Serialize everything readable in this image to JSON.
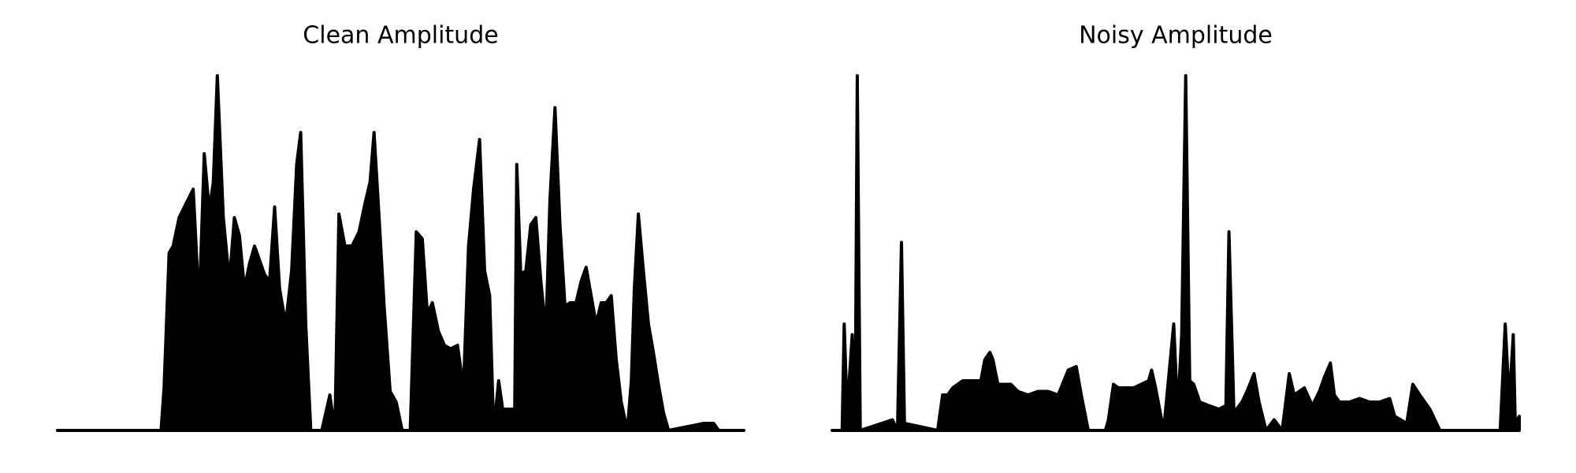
{
  "chart_data": [
    {
      "type": "area",
      "title": "Clean Amplitude",
      "color": "#000000",
      "x": [
        0,
        103,
        106,
        111,
        115,
        121,
        128,
        135,
        141,
        146,
        151,
        155,
        159,
        165,
        171,
        176,
        181,
        186,
        191,
        196,
        201,
        206,
        211,
        216,
        221,
        227,
        233,
        238,
        242,
        247,
        252,
        263,
        271,
        276,
        280,
        286,
        293,
        300,
        306,
        311,
        315,
        320,
        325,
        331,
        337,
        343,
        351,
        357,
        363,
        368,
        373,
        379,
        385,
        391,
        398,
        404,
        409,
        414,
        420,
        425,
        430,
        434,
        439,
        443,
        449,
        455,
        457,
        461,
        466,
        471,
        476,
        481,
        486,
        490,
        495,
        500,
        505,
        510,
        516,
        521,
        526,
        531,
        536,
        541,
        546,
        551,
        556,
        561,
        567,
        571,
        574,
        578,
        583,
        588,
        593,
        598,
        603,
        608,
        643,
        653,
        658,
        683
      ],
      "values": [
        0,
        0,
        0.12,
        0.5,
        0.52,
        0.6,
        0.64,
        0.68,
        0.35,
        0.78,
        0.62,
        0.7,
        1.0,
        0.6,
        0.42,
        0.6,
        0.55,
        0.4,
        0.47,
        0.52,
        0.48,
        0.44,
        0.42,
        0.63,
        0.4,
        0.3,
        0.45,
        0.75,
        0.84,
        0.3,
        0,
        0,
        0.1,
        0,
        0.61,
        0.52,
        0.52,
        0.56,
        0.64,
        0.7,
        0.84,
        0.6,
        0.35,
        0.11,
        0.08,
        0,
        0,
        0.56,
        0.54,
        0.33,
        0.36,
        0.28,
        0.24,
        0.23,
        0.24,
        0.12,
        0.52,
        0.68,
        0.82,
        0.45,
        0.38,
        0,
        0.14,
        0.06,
        0.06,
        0.06,
        0.75,
        0.44,
        0.45,
        0.58,
        0.6,
        0.42,
        0.28,
        0.65,
        0.91,
        0.58,
        0.35,
        0.36,
        0.36,
        0.42,
        0.46,
        0.38,
        0.3,
        0.36,
        0.36,
        0.38,
        0.2,
        0.08,
        0,
        0.14,
        0.4,
        0.61,
        0.45,
        0.3,
        0.22,
        0.13,
        0.05,
        0,
        0.02,
        0.02,
        0,
        0
      ]
    },
    {
      "type": "area",
      "title": "Noisy Amplitude",
      "color": "#000000",
      "x": [
        0,
        10,
        12,
        15,
        20,
        23,
        25,
        28,
        60,
        65,
        69,
        72,
        105,
        110,
        115,
        120,
        130,
        140,
        148,
        152,
        157,
        160,
        165,
        173,
        178,
        185,
        195,
        205,
        215,
        225,
        235,
        243,
        248,
        255,
        272,
        275,
        280,
        285,
        300,
        315,
        318,
        322,
        330,
        340,
        344,
        348,
        352,
        356,
        360,
        366,
        375,
        385,
        392,
        395,
        400,
        408,
        413,
        420,
        425,
        432,
        440,
        448,
        455,
        460,
        465,
        470,
        478,
        485,
        490,
        496,
        500,
        505,
        515,
        525,
        535,
        545,
        555,
        560,
        572,
        578,
        585,
        595,
        605,
        650,
        665,
        670,
        674,
        678,
        680,
        684
      ],
      "values": [
        0,
        0,
        0.3,
        0.05,
        0.27,
        0.05,
        1.0,
        0,
        0.03,
        0,
        0.53,
        0.02,
        0,
        0.1,
        0.1,
        0.12,
        0.14,
        0.14,
        0.14,
        0.2,
        0.22,
        0.2,
        0.13,
        0.13,
        0.13,
        0.11,
        0.1,
        0.11,
        0.11,
        0.1,
        0.17,
        0.18,
        0.1,
        0,
        0,
        0.03,
        0.13,
        0.12,
        0.12,
        0.14,
        0.17,
        0.12,
        0,
        0.3,
        0.05,
        0.27,
        1.0,
        0.14,
        0.13,
        0.08,
        0.07,
        0.06,
        0.07,
        0.56,
        0.05,
        0.08,
        0.11,
        0.16,
        0.08,
        0,
        0.03,
        0,
        0.16,
        0.1,
        0.11,
        0.12,
        0.07,
        0.11,
        0.15,
        0.19,
        0.1,
        0.08,
        0.08,
        0.09,
        0.08,
        0.08,
        0.09,
        0.04,
        0.02,
        0.13,
        0.1,
        0.06,
        0,
        0,
        0,
        0.3,
        0.08,
        0.27,
        0.02,
        0.04
      ]
    }
  ]
}
